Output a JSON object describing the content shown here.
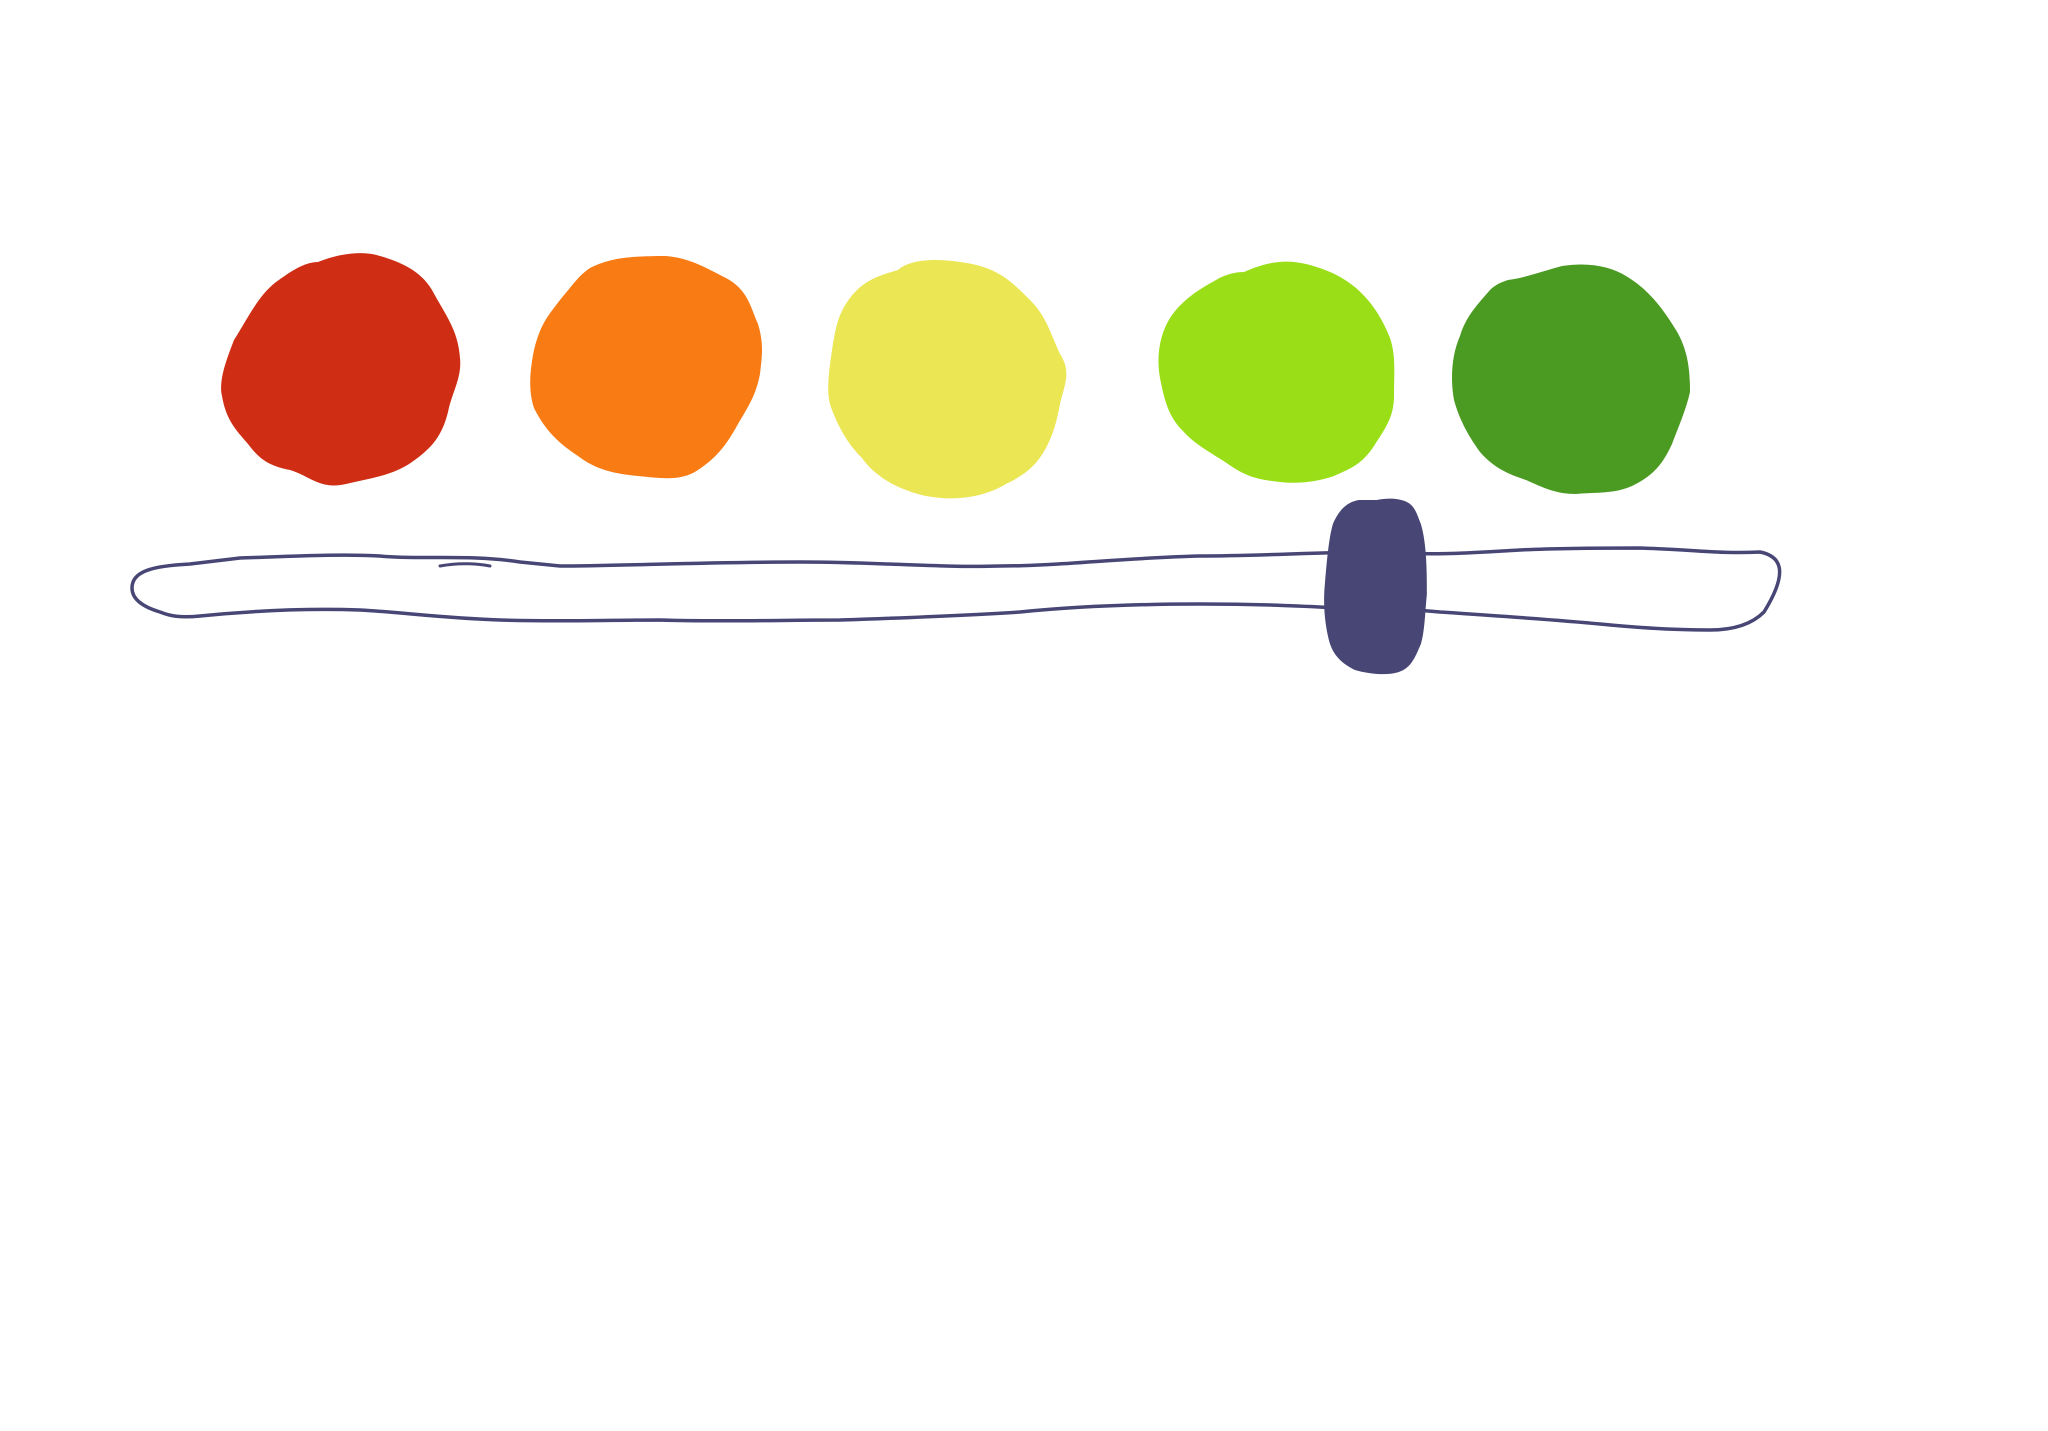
{
  "color_dots": [
    {
      "id": "red",
      "color": "#CF2E15"
    },
    {
      "id": "orange",
      "color": "#F87B14"
    },
    {
      "id": "yellow",
      "color": "#EBE653"
    },
    {
      "id": "lime",
      "color": "#99DE17"
    },
    {
      "id": "green",
      "color": "#4B9B22"
    }
  ],
  "slider": {
    "track_stroke": "#474675",
    "thumb_color": "#474675",
    "value": 0.76
  }
}
